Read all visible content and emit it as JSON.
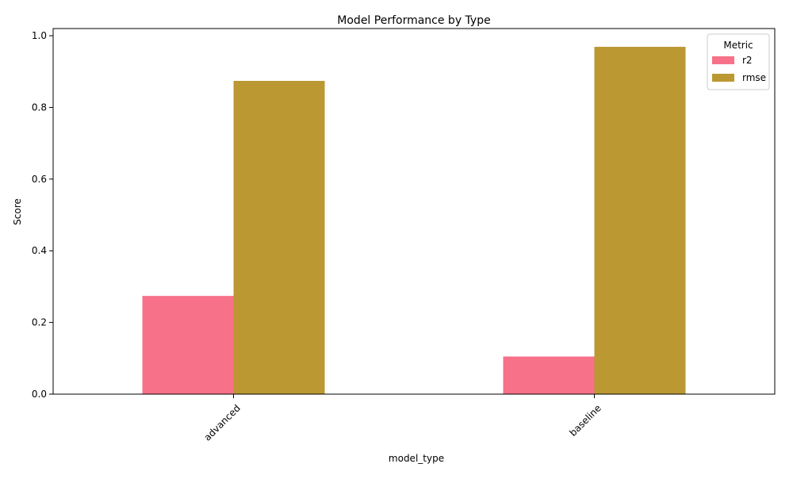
{
  "chart_data": {
    "type": "bar",
    "title": "Model Performance by Type",
    "xlabel": "model_type",
    "ylabel": "Score",
    "categories": [
      "advanced",
      "baseline"
    ],
    "series": [
      {
        "name": "r2",
        "values": [
          0.274,
          0.105
        ],
        "color": "#f77189"
      },
      {
        "name": "rmse",
        "values": [
          0.874,
          0.969
        ],
        "color": "#bb9832"
      }
    ],
    "ylim": [
      0,
      1.02
    ],
    "yticks": [
      0.0,
      0.2,
      0.4,
      0.6,
      0.8,
      1.0
    ],
    "ytick_labels": [
      "0.0",
      "0.2",
      "0.4",
      "0.6",
      "0.8",
      "1.0"
    ],
    "xtick_rotation": 45,
    "grid": false,
    "legend": {
      "title": "Metric",
      "placement": "top-right"
    }
  }
}
